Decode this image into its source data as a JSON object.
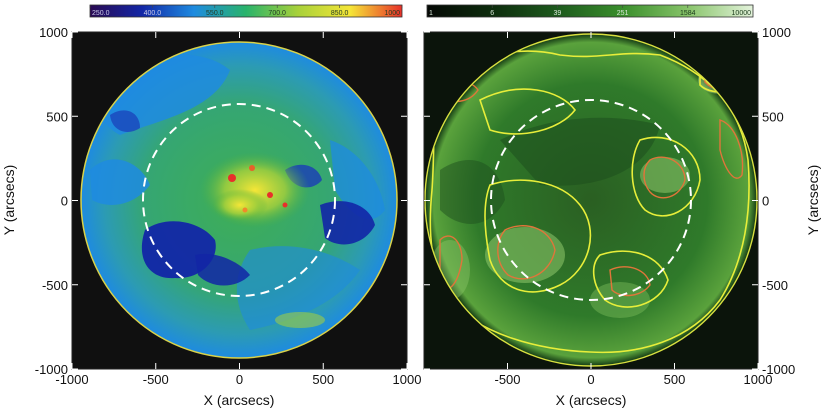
{
  "left_colorbar": {
    "ticks": [
      "250.0",
      "400.0",
      "550.0",
      "700.0",
      "850.0",
      "1000"
    ],
    "values": [
      250,
      400,
      550,
      700,
      850,
      1000
    ],
    "colors": [
      "#2a0a52",
      "#1226a6",
      "#1e8be0",
      "#29b36b",
      "#a8d13a",
      "#f5e637",
      "#e8302a"
    ]
  },
  "right_colorbar": {
    "ticks": [
      "1",
      "6",
      "39",
      "251",
      "1584",
      "10000"
    ],
    "values": [
      1,
      6,
      39,
      251,
      1584,
      10000
    ],
    "scale": "log",
    "colors": [
      "#050805",
      "#0d2c0d",
      "#1d5a1d",
      "#3a8f2c",
      "#88c46a",
      "#e4f3dc"
    ]
  },
  "left_panel": {
    "x_label": "X (arcsecs)",
    "y_label": "Y (arcsecs)",
    "x_ticks": [
      "-1000",
      "-500",
      "0",
      "500",
      "1000"
    ],
    "y_ticks": [
      "1000",
      "500",
      "0",
      "-500",
      "-1000"
    ],
    "x_range": [
      -1000,
      1000
    ],
    "y_range": [
      -1000,
      1000
    ],
    "dashed_circle_radius": 600,
    "colors": {
      "background": "#101010",
      "disk": "#2c9f7e",
      "dashed": "#ffffff"
    }
  },
  "right_panel": {
    "x_label": "X (arcsecs)",
    "y_label": "Y (arcsecs)",
    "x_ticks": [
      "-500",
      "0",
      "500",
      "1000"
    ],
    "y_ticks": [
      "1000",
      "500",
      "0",
      "-500",
      "-1000"
    ],
    "x_range": [
      -1000,
      1000
    ],
    "y_range": [
      -1000,
      1000
    ],
    "dashed_circle_radius": 600,
    "colors": {
      "background": "#0b140b",
      "disk": "#2e7a2a",
      "contour_yellow": "#e7ee3a",
      "contour_orange": "#e0753a",
      "dashed": "#ffffff"
    }
  }
}
